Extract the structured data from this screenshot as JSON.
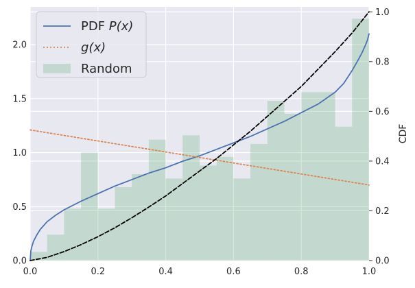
{
  "chart_data": {
    "type": "bar",
    "title": "",
    "xlabel": "",
    "ylabel": "",
    "y2label": "CDF",
    "xlim": [
      0,
      1
    ],
    "ylim": [
      0,
      2.35
    ],
    "y2lim": [
      0,
      1.02
    ],
    "grid": true,
    "legend_position": "top-left",
    "x_ticks": [
      "0.0",
      "0.2",
      "0.4",
      "0.6",
      "0.8",
      "1.0"
    ],
    "y_ticks": [
      "0.0",
      "0.5",
      "1.0",
      "1.5",
      "2.0"
    ],
    "y2_ticks": [
      "0.0",
      "0.2",
      "0.4",
      "0.6",
      "0.8",
      "1.0"
    ],
    "colors": {
      "plot_bg": "#e8e8f1",
      "grid": "#ffffff",
      "pdf": "#4c72b0",
      "g": "#dd8452",
      "hist": "#55a868",
      "cdf": "#000000"
    },
    "legend": [
      {
        "key": "pdf",
        "label_prefix": "PDF ",
        "label_math": "P(x)",
        "style": "solid"
      },
      {
        "key": "g",
        "label_prefix": "",
        "label_math": "g(x)",
        "style": "dotted"
      },
      {
        "key": "hist",
        "label_prefix": "Random",
        "label_math": "",
        "style": "patch"
      }
    ],
    "histogram": {
      "bin_edges": [
        0,
        0.05,
        0.1,
        0.15,
        0.2,
        0.25,
        0.3,
        0.35,
        0.4,
        0.45,
        0.5,
        0.55,
        0.6,
        0.65,
        0.7,
        0.75,
        0.8,
        0.85,
        0.9,
        0.95,
        1.0
      ],
      "values": [
        0.08,
        0.24,
        0.48,
        1.0,
        0.48,
        0.68,
        0.8,
        1.12,
        0.76,
        1.16,
        0.88,
        0.96,
        0.76,
        1.08,
        1.48,
        1.36,
        1.56,
        1.56,
        1.24,
        2.24
      ]
    },
    "series": [
      {
        "key": "pdf",
        "axis": "left",
        "x": [
          0,
          0.002,
          0.005,
          0.01,
          0.02,
          0.03,
          0.05,
          0.075,
          0.1,
          0.15,
          0.2,
          0.25,
          0.3,
          0.35,
          0.4,
          0.45,
          0.5,
          0.55,
          0.6,
          0.65,
          0.7,
          0.75,
          0.8,
          0.85,
          0.9,
          0.925,
          0.95,
          0.97,
          0.98,
          0.99,
          0.995,
          1.0
        ],
        "values": [
          0.0,
          0.09,
          0.13,
          0.18,
          0.24,
          0.29,
          0.36,
          0.42,
          0.47,
          0.55,
          0.62,
          0.69,
          0.75,
          0.81,
          0.86,
          0.92,
          0.97,
          1.03,
          1.09,
          1.15,
          1.22,
          1.29,
          1.37,
          1.45,
          1.56,
          1.64,
          1.76,
          1.87,
          1.93,
          2.0,
          2.04,
          2.1
        ]
      },
      {
        "key": "g",
        "axis": "left",
        "x": [
          0,
          1
        ],
        "values": [
          1.21,
          0.7
        ]
      },
      {
        "key": "cdf",
        "axis": "right",
        "x": [
          0,
          0.05,
          0.1,
          0.15,
          0.2,
          0.25,
          0.3,
          0.35,
          0.4,
          0.45,
          0.5,
          0.55,
          0.6,
          0.65,
          0.7,
          0.75,
          0.8,
          0.85,
          0.9,
          0.95,
          1.0
        ],
        "values": [
          0,
          0.013,
          0.036,
          0.064,
          0.096,
          0.132,
          0.172,
          0.215,
          0.26,
          0.31,
          0.36,
          0.41,
          0.465,
          0.52,
          0.58,
          0.64,
          0.7,
          0.77,
          0.84,
          0.915,
          1.0
        ]
      }
    ]
  }
}
